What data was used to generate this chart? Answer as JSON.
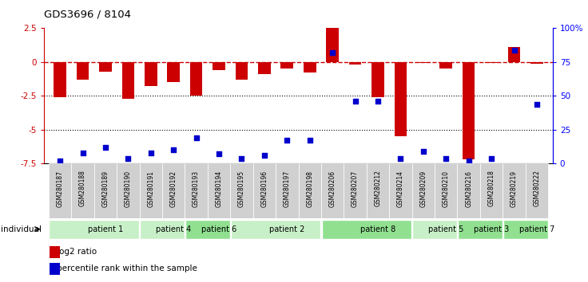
{
  "title": "GDS3696 / 8104",
  "samples": [
    "GSM280187",
    "GSM280188",
    "GSM280189",
    "GSM280190",
    "GSM280191",
    "GSM280192",
    "GSM280193",
    "GSM280194",
    "GSM280195",
    "GSM280196",
    "GSM280197",
    "GSM280198",
    "GSM280206",
    "GSM280207",
    "GSM280212",
    "GSM280214",
    "GSM280209",
    "GSM280210",
    "GSM280216",
    "GSM280218",
    "GSM280219",
    "GSM280222"
  ],
  "log2_ratio": [
    -2.6,
    -1.3,
    -0.7,
    -2.7,
    -1.8,
    -1.5,
    -2.5,
    -0.6,
    -1.3,
    -0.9,
    -0.5,
    -0.8,
    2.5,
    -0.2,
    -2.6,
    -5.5,
    -0.05,
    -0.5,
    -7.2,
    -0.05,
    1.1,
    -0.1
  ],
  "percentile_rank": [
    2,
    8,
    12,
    4,
    8,
    10,
    19,
    7,
    4,
    6,
    17,
    17,
    82,
    46,
    46,
    4,
    9,
    4,
    2,
    4,
    84,
    44
  ],
  "patients": [
    {
      "label": "patient 1",
      "start": 0,
      "end": 4,
      "color": "#c8f0c8"
    },
    {
      "label": "patient 4",
      "start": 4,
      "end": 6,
      "color": "#c8f0c8"
    },
    {
      "label": "patient 6",
      "start": 6,
      "end": 8,
      "color": "#90e090"
    },
    {
      "label": "patient 2",
      "start": 8,
      "end": 12,
      "color": "#c8f0c8"
    },
    {
      "label": "patient 8",
      "start": 12,
      "end": 16,
      "color": "#90e090"
    },
    {
      "label": "patient 5",
      "start": 16,
      "end": 18,
      "color": "#c8f0c8"
    },
    {
      "label": "patient 3",
      "start": 18,
      "end": 20,
      "color": "#90e090"
    },
    {
      "label": "patient 7",
      "start": 20,
      "end": 22,
      "color": "#90e090"
    }
  ],
  "ylim_left": [
    -7.5,
    2.5
  ],
  "ylim_right": [
    0,
    100
  ],
  "bar_color": "#cc0000",
  "dot_color": "#0000cc",
  "gridline_y": [
    -2.5,
    -5.0
  ],
  "bar_width": 0.55,
  "legend_log2": "log2 ratio",
  "legend_pct": "percentile rank within the sample",
  "tick_bg": "#d0d0d0"
}
